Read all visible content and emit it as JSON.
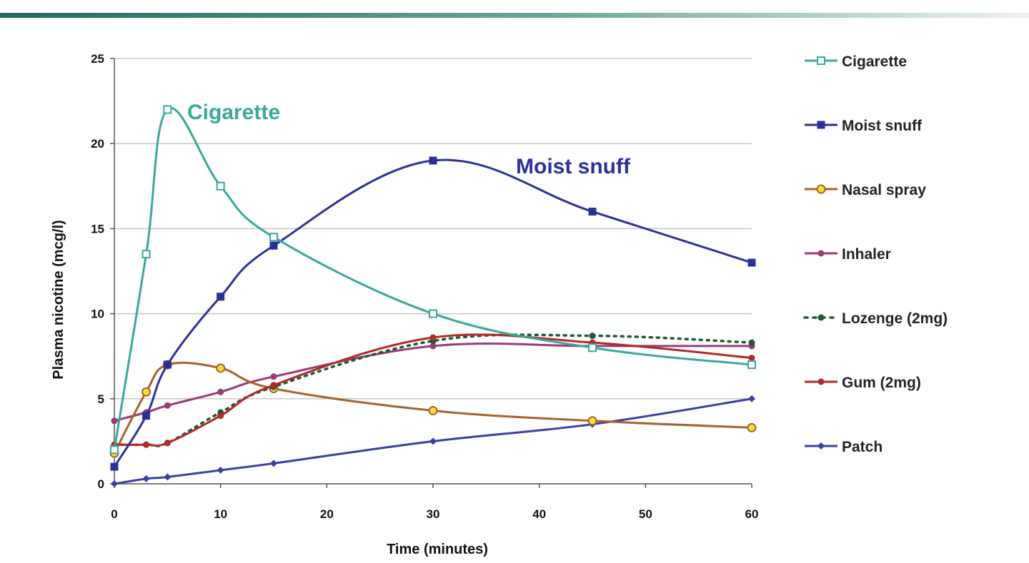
{
  "chart_data": {
    "type": "line",
    "xlabel": "Time (minutes)",
    "ylabel": "Plasma nicotine (mcg/l)",
    "xlim": [
      0,
      60
    ],
    "ylim": [
      0,
      25
    ],
    "x_ticks": [
      0,
      10,
      20,
      30,
      40,
      50,
      60
    ],
    "y_ticks": [
      0,
      5,
      10,
      15,
      20,
      25
    ],
    "grid": "horizontal",
    "legend_position": "right",
    "annotations": [
      {
        "text": "Cigarette",
        "series": "Cigarette"
      },
      {
        "text": "Moist snuff",
        "series": "Moist snuff"
      }
    ],
    "series": [
      {
        "name": "Cigarette",
        "color": "#3aa99a",
        "marker": "open-square",
        "dash": "solid",
        "x": [
          0,
          3,
          5,
          10,
          15,
          30,
          45,
          60
        ],
        "y": [
          2.0,
          13.5,
          22.0,
          17.5,
          14.5,
          10.0,
          8.0,
          7.0
        ]
      },
      {
        "name": "Moist snuff",
        "color": "#2b3199",
        "marker": "square",
        "dash": "solid",
        "x": [
          0,
          3,
          5,
          10,
          15,
          30,
          45,
          60
        ],
        "y": [
          1.0,
          4.0,
          7.0,
          11.0,
          14.0,
          19.0,
          16.0,
          13.0
        ]
      },
      {
        "name": "Nasal spray",
        "color": "#a5632b",
        "marker": "yellow-circle",
        "dash": "solid",
        "x": [
          0,
          3,
          5,
          10,
          15,
          30,
          45,
          60
        ],
        "y": [
          1.8,
          5.4,
          7.0,
          6.8,
          5.6,
          4.3,
          3.7,
          3.3
        ]
      },
      {
        "name": "Inhaler",
        "color": "#9a3b78",
        "marker": "circle",
        "dash": "solid",
        "x": [
          0,
          3,
          5,
          10,
          15,
          30,
          45,
          60
        ],
        "y": [
          3.7,
          4.2,
          4.6,
          5.4,
          6.3,
          8.1,
          8.1,
          8.1
        ]
      },
      {
        "name": "Lozenge (2mg)",
        "color": "#1f5a2e",
        "marker": "circle",
        "dash": "dotted",
        "x": [
          0,
          3,
          5,
          10,
          15,
          30,
          45,
          60
        ],
        "y": [
          2.3,
          2.3,
          2.4,
          4.2,
          5.7,
          8.4,
          8.7,
          8.3
        ]
      },
      {
        "name": "Gum (2mg)",
        "color": "#b02a2a",
        "marker": "circle",
        "dash": "solid",
        "x": [
          0,
          3,
          5,
          10,
          15,
          30,
          45,
          60
        ],
        "y": [
          2.3,
          2.3,
          2.4,
          4.0,
          5.8,
          8.6,
          8.3,
          7.4
        ]
      },
      {
        "name": "Patch",
        "color": "#3a40a0",
        "marker": "diamond",
        "dash": "solid",
        "x": [
          0,
          3,
          5,
          10,
          15,
          30,
          45,
          60
        ],
        "y": [
          0.0,
          0.3,
          0.4,
          0.8,
          1.2,
          2.5,
          3.5,
          5.0
        ]
      }
    ]
  }
}
